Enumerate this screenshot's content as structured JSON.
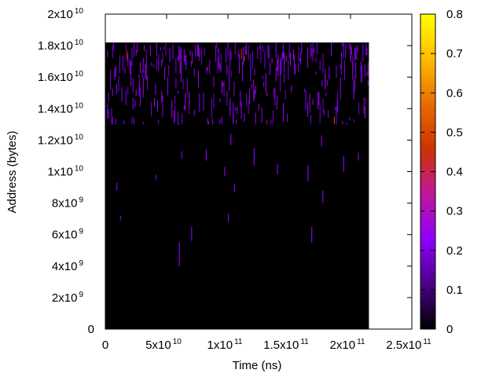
{
  "chart_data": {
    "type": "heatmap",
    "title": "",
    "xlabel": "Time (ns)",
    "ylabel": "Address (bytes)",
    "xlim": [
      0,
      250000000000
    ],
    "ylim": [
      0,
      20000000000
    ],
    "data_extent": {
      "x": [
        0,
        215000000000
      ],
      "y": [
        0,
        18200000000
      ]
    },
    "x_ticks": [
      {
        "value": 0,
        "mantissa": "0",
        "exponent": ""
      },
      {
        "value": 50000000000,
        "mantissa": "5x10",
        "exponent": "10"
      },
      {
        "value": 100000000000,
        "mantissa": "1x10",
        "exponent": "11"
      },
      {
        "value": 150000000000,
        "mantissa": "1.5x10",
        "exponent": "11"
      },
      {
        "value": 200000000000,
        "mantissa": "2x10",
        "exponent": "11"
      },
      {
        "value": 250000000000,
        "mantissa": "2.5x10",
        "exponent": "11"
      }
    ],
    "y_ticks": [
      {
        "value": 0,
        "mantissa": "0",
        "exponent": ""
      },
      {
        "value": 2000000000,
        "mantissa": "2x10",
        "exponent": "9"
      },
      {
        "value": 4000000000,
        "mantissa": "4x10",
        "exponent": "9"
      },
      {
        "value": 6000000000,
        "mantissa": "6x10",
        "exponent": "9"
      },
      {
        "value": 8000000000,
        "mantissa": "8x10",
        "exponent": "9"
      },
      {
        "value": 10000000000,
        "mantissa": "1x10",
        "exponent": "10"
      },
      {
        "value": 12000000000,
        "mantissa": "1.2x10",
        "exponent": "10"
      },
      {
        "value": 14000000000,
        "mantissa": "1.4x10",
        "exponent": "10"
      },
      {
        "value": 16000000000,
        "mantissa": "1.6x10",
        "exponent": "10"
      },
      {
        "value": 18000000000,
        "mantissa": "1.8x10",
        "exponent": "10"
      },
      {
        "value": 20000000000,
        "mantissa": "2x10",
        "exponent": "10"
      }
    ],
    "colorbar": {
      "range": [
        0,
        0.8
      ],
      "ticks": [
        {
          "value": 0,
          "label": "0"
        },
        {
          "value": 0.1,
          "label": "0.1"
        },
        {
          "value": 0.2,
          "label": "0.2"
        },
        {
          "value": 0.3,
          "label": "0.3"
        },
        {
          "value": 0.4,
          "label": "0.4"
        },
        {
          "value": 0.5,
          "label": "0.5"
        },
        {
          "value": 0.6,
          "label": "0.6"
        },
        {
          "value": 0.7,
          "label": "0.7"
        },
        {
          "value": 0.8,
          "label": "0.8"
        }
      ],
      "palette": [
        "#000000",
        "#4b0087",
        "#8f00ff",
        "#c0179b",
        "#cc3300",
        "#e66c00",
        "#ffbb00",
        "#ffff00"
      ]
    },
    "background_value": 0,
    "dense_band": {
      "y": [
        13000000000,
        18200000000
      ],
      "typical_value": 0.22
    },
    "streaks": [
      {
        "x": 62000000000,
        "y": [
          10800000000,
          11300000000
        ],
        "value": 0.2
      },
      {
        "x": 82000000000,
        "y": [
          10700000000,
          11400000000
        ],
        "value": 0.22
      },
      {
        "x": 97000000000,
        "y": [
          9700000000,
          10300000000
        ],
        "value": 0.2
      },
      {
        "x": 121000000000,
        "y": [
          10400000000,
          11500000000
        ],
        "value": 0.22
      },
      {
        "x": 140000000000,
        "y": [
          9800000000,
          10500000000
        ],
        "value": 0.2
      },
      {
        "x": 165000000000,
        "y": [
          9400000000,
          10400000000
        ],
        "value": 0.22
      },
      {
        "x": 176000000000,
        "y": [
          11600000000,
          12300000000
        ],
        "value": 0.2
      },
      {
        "x": 194000000000,
        "y": [
          10000000000,
          11000000000
        ],
        "value": 0.22
      },
      {
        "x": 206000000000,
        "y": [
          10700000000,
          11200000000
        ],
        "value": 0.2
      },
      {
        "x": 9000000000,
        "y": [
          8800000000,
          9300000000
        ],
        "value": 0.2
      },
      {
        "x": 41000000000,
        "y": [
          9500000000,
          9800000000
        ],
        "value": 0.2
      },
      {
        "x": 105000000000,
        "y": [
          8700000000,
          9200000000
        ],
        "value": 0.22
      },
      {
        "x": 177000000000,
        "y": [
          8000000000,
          8800000000
        ],
        "value": 0.2
      },
      {
        "x": 102000000000,
        "y": [
          11700000000,
          12400000000
        ],
        "value": 0.22
      },
      {
        "x": 12000000000,
        "y": [
          6900000000,
          7200000000
        ],
        "value": 0.2
      },
      {
        "x": 60000000000,
        "y": [
          4000000000,
          5500000000
        ],
        "value": 0.22
      },
      {
        "x": 70000000000,
        "y": [
          5600000000,
          6500000000
        ],
        "value": 0.2
      },
      {
        "x": 100000000000,
        "y": [
          6800000000,
          7300000000
        ],
        "value": 0.2
      },
      {
        "x": 168000000000,
        "y": [
          5500000000,
          6500000000
        ],
        "value": 0.22
      }
    ]
  }
}
